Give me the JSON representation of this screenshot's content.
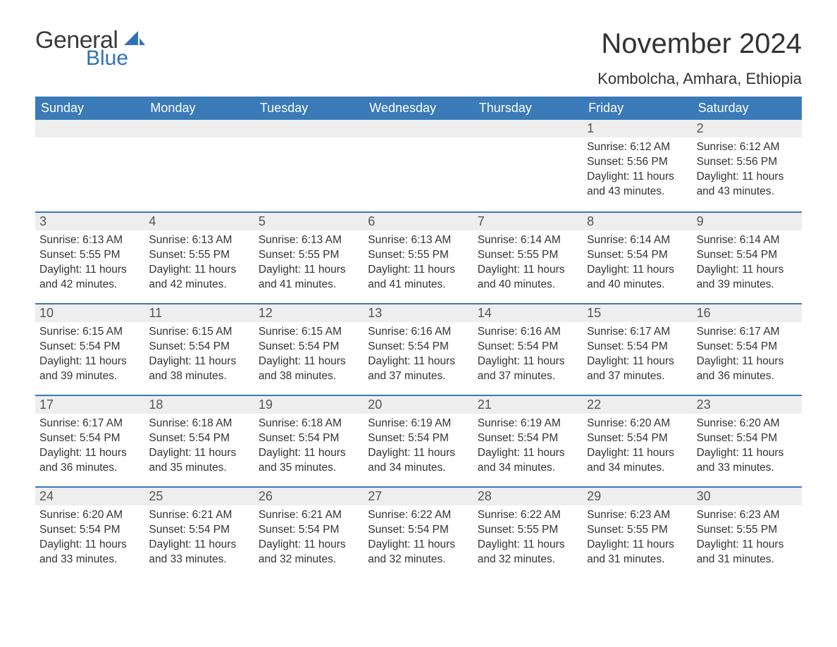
{
  "logo": {
    "word1": "General",
    "word2": "Blue",
    "sail_color": "#2f72b7",
    "text_dark": "#3a3a3a"
  },
  "header": {
    "month_title": "November 2024",
    "location": "Kombolcha, Amhara, Ethiopia"
  },
  "colors": {
    "header_bg": "#3a7ab8",
    "header_text": "#ffffff",
    "row_border": "#3a7ab8",
    "daynum_bg": "#eeeeee",
    "body_text": "#333333",
    "background": "#ffffff"
  },
  "typography": {
    "month_title_fontsize": 40,
    "location_fontsize": 22,
    "weekday_fontsize": 18,
    "daynum_fontsize": 18,
    "body_fontsize": 15.5
  },
  "weekdays": [
    "Sunday",
    "Monday",
    "Tuesday",
    "Wednesday",
    "Thursday",
    "Friday",
    "Saturday"
  ],
  "weeks": [
    [
      {
        "num": "",
        "sunrise": "",
        "sunset": "",
        "daylight": ""
      },
      {
        "num": "",
        "sunrise": "",
        "sunset": "",
        "daylight": ""
      },
      {
        "num": "",
        "sunrise": "",
        "sunset": "",
        "daylight": ""
      },
      {
        "num": "",
        "sunrise": "",
        "sunset": "",
        "daylight": ""
      },
      {
        "num": "",
        "sunrise": "",
        "sunset": "",
        "daylight": ""
      },
      {
        "num": "1",
        "sunrise": "Sunrise: 6:12 AM",
        "sunset": "Sunset: 5:56 PM",
        "daylight": "Daylight: 11 hours and 43 minutes."
      },
      {
        "num": "2",
        "sunrise": "Sunrise: 6:12 AM",
        "sunset": "Sunset: 5:56 PM",
        "daylight": "Daylight: 11 hours and 43 minutes."
      }
    ],
    [
      {
        "num": "3",
        "sunrise": "Sunrise: 6:13 AM",
        "sunset": "Sunset: 5:55 PM",
        "daylight": "Daylight: 11 hours and 42 minutes."
      },
      {
        "num": "4",
        "sunrise": "Sunrise: 6:13 AM",
        "sunset": "Sunset: 5:55 PM",
        "daylight": "Daylight: 11 hours and 42 minutes."
      },
      {
        "num": "5",
        "sunrise": "Sunrise: 6:13 AM",
        "sunset": "Sunset: 5:55 PM",
        "daylight": "Daylight: 11 hours and 41 minutes."
      },
      {
        "num": "6",
        "sunrise": "Sunrise: 6:13 AM",
        "sunset": "Sunset: 5:55 PM",
        "daylight": "Daylight: 11 hours and 41 minutes."
      },
      {
        "num": "7",
        "sunrise": "Sunrise: 6:14 AM",
        "sunset": "Sunset: 5:55 PM",
        "daylight": "Daylight: 11 hours and 40 minutes."
      },
      {
        "num": "8",
        "sunrise": "Sunrise: 6:14 AM",
        "sunset": "Sunset: 5:54 PM",
        "daylight": "Daylight: 11 hours and 40 minutes."
      },
      {
        "num": "9",
        "sunrise": "Sunrise: 6:14 AM",
        "sunset": "Sunset: 5:54 PM",
        "daylight": "Daylight: 11 hours and 39 minutes."
      }
    ],
    [
      {
        "num": "10",
        "sunrise": "Sunrise: 6:15 AM",
        "sunset": "Sunset: 5:54 PM",
        "daylight": "Daylight: 11 hours and 39 minutes."
      },
      {
        "num": "11",
        "sunrise": "Sunrise: 6:15 AM",
        "sunset": "Sunset: 5:54 PM",
        "daylight": "Daylight: 11 hours and 38 minutes."
      },
      {
        "num": "12",
        "sunrise": "Sunrise: 6:15 AM",
        "sunset": "Sunset: 5:54 PM",
        "daylight": "Daylight: 11 hours and 38 minutes."
      },
      {
        "num": "13",
        "sunrise": "Sunrise: 6:16 AM",
        "sunset": "Sunset: 5:54 PM",
        "daylight": "Daylight: 11 hours and 37 minutes."
      },
      {
        "num": "14",
        "sunrise": "Sunrise: 6:16 AM",
        "sunset": "Sunset: 5:54 PM",
        "daylight": "Daylight: 11 hours and 37 minutes."
      },
      {
        "num": "15",
        "sunrise": "Sunrise: 6:17 AM",
        "sunset": "Sunset: 5:54 PM",
        "daylight": "Daylight: 11 hours and 37 minutes."
      },
      {
        "num": "16",
        "sunrise": "Sunrise: 6:17 AM",
        "sunset": "Sunset: 5:54 PM",
        "daylight": "Daylight: 11 hours and 36 minutes."
      }
    ],
    [
      {
        "num": "17",
        "sunrise": "Sunrise: 6:17 AM",
        "sunset": "Sunset: 5:54 PM",
        "daylight": "Daylight: 11 hours and 36 minutes."
      },
      {
        "num": "18",
        "sunrise": "Sunrise: 6:18 AM",
        "sunset": "Sunset: 5:54 PM",
        "daylight": "Daylight: 11 hours and 35 minutes."
      },
      {
        "num": "19",
        "sunrise": "Sunrise: 6:18 AM",
        "sunset": "Sunset: 5:54 PM",
        "daylight": "Daylight: 11 hours and 35 minutes."
      },
      {
        "num": "20",
        "sunrise": "Sunrise: 6:19 AM",
        "sunset": "Sunset: 5:54 PM",
        "daylight": "Daylight: 11 hours and 34 minutes."
      },
      {
        "num": "21",
        "sunrise": "Sunrise: 6:19 AM",
        "sunset": "Sunset: 5:54 PM",
        "daylight": "Daylight: 11 hours and 34 minutes."
      },
      {
        "num": "22",
        "sunrise": "Sunrise: 6:20 AM",
        "sunset": "Sunset: 5:54 PM",
        "daylight": "Daylight: 11 hours and 34 minutes."
      },
      {
        "num": "23",
        "sunrise": "Sunrise: 6:20 AM",
        "sunset": "Sunset: 5:54 PM",
        "daylight": "Daylight: 11 hours and 33 minutes."
      }
    ],
    [
      {
        "num": "24",
        "sunrise": "Sunrise: 6:20 AM",
        "sunset": "Sunset: 5:54 PM",
        "daylight": "Daylight: 11 hours and 33 minutes."
      },
      {
        "num": "25",
        "sunrise": "Sunrise: 6:21 AM",
        "sunset": "Sunset: 5:54 PM",
        "daylight": "Daylight: 11 hours and 33 minutes."
      },
      {
        "num": "26",
        "sunrise": "Sunrise: 6:21 AM",
        "sunset": "Sunset: 5:54 PM",
        "daylight": "Daylight: 11 hours and 32 minutes."
      },
      {
        "num": "27",
        "sunrise": "Sunrise: 6:22 AM",
        "sunset": "Sunset: 5:54 PM",
        "daylight": "Daylight: 11 hours and 32 minutes."
      },
      {
        "num": "28",
        "sunrise": "Sunrise: 6:22 AM",
        "sunset": "Sunset: 5:55 PM",
        "daylight": "Daylight: 11 hours and 32 minutes."
      },
      {
        "num": "29",
        "sunrise": "Sunrise: 6:23 AM",
        "sunset": "Sunset: 5:55 PM",
        "daylight": "Daylight: 11 hours and 31 minutes."
      },
      {
        "num": "30",
        "sunrise": "Sunrise: 6:23 AM",
        "sunset": "Sunset: 5:55 PM",
        "daylight": "Daylight: 11 hours and 31 minutes."
      }
    ]
  ]
}
